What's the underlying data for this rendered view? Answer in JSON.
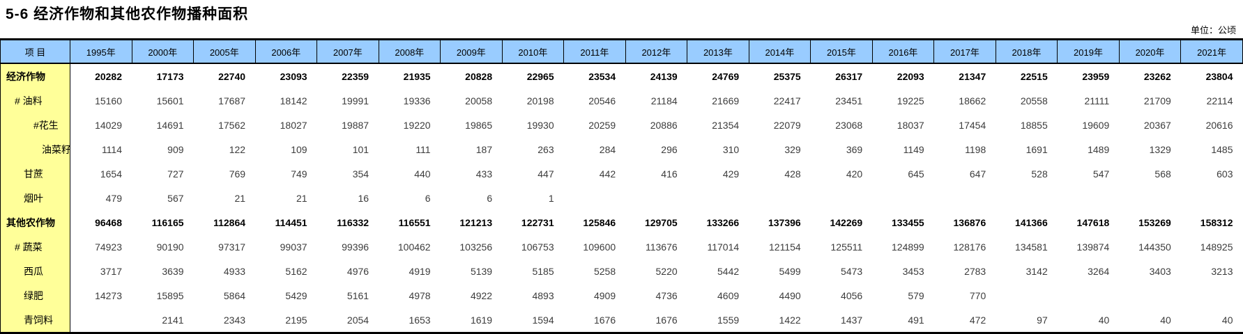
{
  "title": "5-6 经济作物和其他农作物播种面积",
  "unit_label": "单位：公顷",
  "colors": {
    "header_bg": "#99CCFF",
    "label_column_bg": "#FFFF99",
    "border": "#000000"
  },
  "table": {
    "item_header": "项  目",
    "years": [
      "1995年",
      "2000年",
      "2005年",
      "2006年",
      "2007年",
      "2008年",
      "2009年",
      "2010年",
      "2011年",
      "2012年",
      "2013年",
      "2014年",
      "2015年",
      "2016年",
      "2017年",
      "2018年",
      "2019年",
      "2020年",
      "2021年"
    ],
    "rows": [
      {
        "label": "经济作物",
        "bold": true,
        "indent": 0,
        "values": [
          "20282",
          "17173",
          "22740",
          "23093",
          "22359",
          "21935",
          "20828",
          "22965",
          "23534",
          "24139",
          "24769",
          "25375",
          "26317",
          "22093",
          "21347",
          "22515",
          "23959",
          "23262",
          "23804"
        ]
      },
      {
        "label": "# 油料",
        "bold": false,
        "indent": 1,
        "values": [
          "15160",
          "15601",
          "17687",
          "18142",
          "19991",
          "19336",
          "20058",
          "20198",
          "20546",
          "21184",
          "21669",
          "22417",
          "23451",
          "19225",
          "18662",
          "20558",
          "21111",
          "21709",
          "22114"
        ]
      },
      {
        "label": "#花生",
        "bold": false,
        "indent": 3,
        "values": [
          "14029",
          "14691",
          "17562",
          "18027",
          "19887",
          "19220",
          "19865",
          "19930",
          "20259",
          "20886",
          "21354",
          "22079",
          "23068",
          "18037",
          "17454",
          "18855",
          "19609",
          "20367",
          "20616"
        ]
      },
      {
        "label": "油菜籽",
        "bold": false,
        "indent": 4,
        "values": [
          "1114",
          "909",
          "122",
          "109",
          "101",
          "111",
          "187",
          "263",
          "284",
          "296",
          "310",
          "329",
          "369",
          "1149",
          "1198",
          "1691",
          "1489",
          "1329",
          "1485"
        ]
      },
      {
        "label": "甘蔗",
        "bold": false,
        "indent": 2,
        "values": [
          "1654",
          "727",
          "769",
          "749",
          "354",
          "440",
          "433",
          "447",
          "442",
          "416",
          "429",
          "428",
          "420",
          "645",
          "647",
          "528",
          "547",
          "568",
          "603"
        ]
      },
      {
        "label": "烟叶",
        "bold": false,
        "indent": 2,
        "values": [
          "479",
          "567",
          "21",
          "21",
          "16",
          "6",
          "6",
          "1",
          "",
          "",
          "",
          "",
          "",
          "",
          "",
          "",
          "",
          "",
          ""
        ]
      },
      {
        "label": "其他农作物",
        "bold": true,
        "indent": 0,
        "values": [
          "96468",
          "116165",
          "112864",
          "114451",
          "116332",
          "116551",
          "121213",
          "122731",
          "125846",
          "129705",
          "133266",
          "137396",
          "142269",
          "133455",
          "136876",
          "141366",
          "147618",
          "153269",
          "158312"
        ]
      },
      {
        "label": "# 蔬菜",
        "bold": false,
        "indent": 1,
        "values": [
          "74923",
          "90190",
          "97317",
          "99037",
          "99396",
          "100462",
          "103256",
          "106753",
          "109600",
          "113676",
          "117014",
          "121154",
          "125511",
          "124899",
          "128176",
          "134581",
          "139874",
          "144350",
          "148925"
        ]
      },
      {
        "label": "西瓜",
        "bold": false,
        "indent": 2,
        "values": [
          "3717",
          "3639",
          "4933",
          "5162",
          "4976",
          "4919",
          "5139",
          "5185",
          "5258",
          "5220",
          "5442",
          "5499",
          "5473",
          "3453",
          "2783",
          "3142",
          "3264",
          "3403",
          "3213"
        ]
      },
      {
        "label": "绿肥",
        "bold": false,
        "indent": 2,
        "values": [
          "14273",
          "15895",
          "5864",
          "5429",
          "5161",
          "4978",
          "4922",
          "4893",
          "4909",
          "4736",
          "4609",
          "4490",
          "4056",
          "579",
          "770",
          "",
          "",
          "",
          ""
        ]
      },
      {
        "label": "青饲料",
        "bold": false,
        "indent": 2,
        "values": [
          "",
          "2141",
          "2343",
          "2195",
          "2054",
          "1653",
          "1619",
          "1594",
          "1676",
          "1676",
          "1559",
          "1422",
          "1437",
          "491",
          "472",
          "97",
          "40",
          "40",
          "40"
        ]
      }
    ]
  }
}
